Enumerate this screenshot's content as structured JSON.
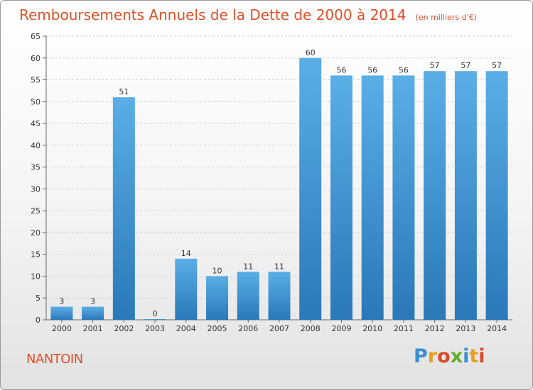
{
  "chart_data": {
    "type": "bar",
    "title": "Remboursements Annuels de la Dette de 2000 à 2014",
    "subtitle": "(en milliers d'€)",
    "categories": [
      "2000",
      "2001",
      "2002",
      "2003",
      "2004",
      "2005",
      "2006",
      "2007",
      "2008",
      "2009",
      "2010",
      "2011",
      "2012",
      "2013",
      "2014"
    ],
    "values": [
      3,
      3,
      51,
      0,
      14,
      10,
      11,
      11,
      60,
      56,
      56,
      56,
      57,
      57,
      57
    ],
    "ylim": [
      0,
      65
    ],
    "yticks": [
      0,
      5,
      10,
      15,
      20,
      25,
      30,
      35,
      40,
      45,
      50,
      55,
      60,
      65
    ],
    "xlabel": "",
    "ylabel": "",
    "grid": "dashed-horizontal",
    "colors": {
      "bar_top": "#5aaee6",
      "bar_bottom": "#2a78b8",
      "title": "#e05028"
    }
  },
  "footer": {
    "commune": "NANTOIN",
    "logo_letters": [
      {
        "ch": "P",
        "color": "#3a8fd0"
      },
      {
        "ch": "r",
        "color": "#e8a020"
      },
      {
        "ch": "o",
        "color": "#d84a2a"
      },
      {
        "ch": "x",
        "color": "#5fb030"
      },
      {
        "ch": "i",
        "color": "#3a8fd0"
      },
      {
        "ch": "t",
        "color": "#e8a020"
      },
      {
        "ch": "i",
        "color": "#d84a2a"
      }
    ]
  }
}
